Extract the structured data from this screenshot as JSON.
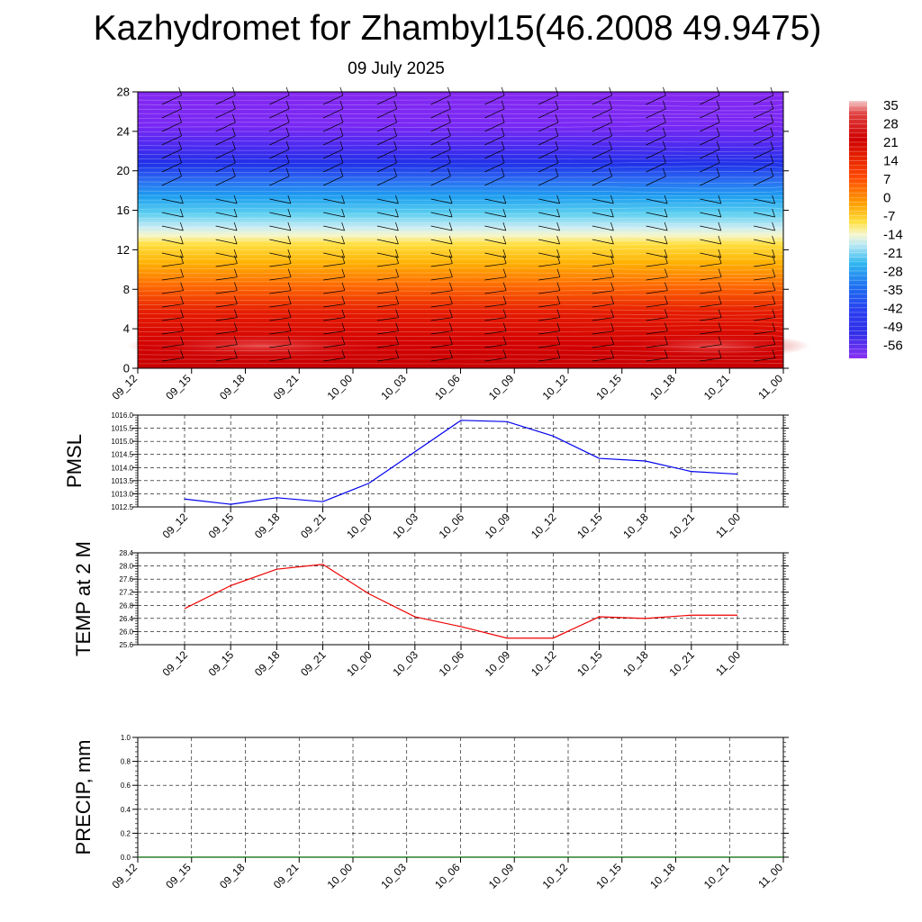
{
  "title": "Kazhydromet for Zhambyl15(46.2008 49.9475)",
  "subtitle": "09 July 2025",
  "colorbar": {
    "labels": [
      "35",
      "28",
      "21",
      "14",
      "7",
      "0",
      "-7",
      "-14",
      "-21",
      "-28",
      "-35",
      "-42",
      "-49",
      "-56"
    ]
  },
  "chart_data": [
    {
      "type": "heatmap",
      "title": "",
      "x_ticks": [
        "09_12",
        "09_15",
        "09_18",
        "09_21",
        "10_00",
        "10_03",
        "10_06",
        "10_09",
        "10_12",
        "10_15",
        "10_18",
        "10_21",
        "11_00"
      ],
      "y_ticks": [
        0,
        4,
        8,
        12,
        16,
        20,
        24,
        28
      ],
      "ylim": [
        0,
        28
      ],
      "color_scale": [
        -56,
        35
      ],
      "wind_barbs": true
    },
    {
      "type": "line",
      "ylabel": "PMSL",
      "x": [
        "09_12",
        "09_15",
        "09_18",
        "09_21",
        "10_00",
        "10_03",
        "10_06",
        "10_09",
        "10_12",
        "10_15",
        "10_18",
        "10_21",
        "11_00"
      ],
      "values": [
        1012.8,
        1012.6,
        1012.85,
        1012.7,
        1013.4,
        1014.6,
        1015.8,
        1015.75,
        1015.2,
        1014.35,
        1014.25,
        1013.85,
        1013.75
      ],
      "ylim": [
        1012.5,
        1016.0
      ],
      "y_ticks": [
        "1012.5",
        "1013.0",
        "1013.5",
        "1014.0",
        "1014.5",
        "1015.0",
        "1015.5",
        "1016.0"
      ],
      "color": "#0000ee",
      "grid": true
    },
    {
      "type": "line",
      "ylabel": "TEMP at 2 M",
      "x": [
        "09_12",
        "09_15",
        "09_18",
        "09_21",
        "10_00",
        "10_03",
        "10_06",
        "10_09",
        "10_12",
        "10_15",
        "10_18",
        "10_21",
        "11_00"
      ],
      "values": [
        26.7,
        27.4,
        27.9,
        28.05,
        27.15,
        26.45,
        26.15,
        25.8,
        25.8,
        26.45,
        26.4,
        26.5,
        26.5
      ],
      "ylim": [
        25.6,
        28.4
      ],
      "y_ticks": [
        "25.6",
        "26.0",
        "26.4",
        "26.8",
        "27.2",
        "27.6",
        "28.0",
        "28.4"
      ],
      "color": "#ee0000",
      "grid": true
    },
    {
      "type": "line",
      "ylabel": "PRECIP, mm",
      "x": [
        "09_12",
        "09_15",
        "09_18",
        "09_21",
        "10_00",
        "10_03",
        "10_06",
        "10_09",
        "10_12",
        "10_15",
        "10_18",
        "10_21",
        "11_00"
      ],
      "values": [
        0,
        0,
        0,
        0,
        0,
        0,
        0,
        0,
        0,
        0,
        0,
        0,
        0
      ],
      "ylim": [
        0,
        1.0
      ],
      "y_ticks": [
        "0.0",
        "0.2",
        "0.4",
        "0.6",
        "0.8",
        "1.0"
      ],
      "color": "#006400",
      "grid": true
    }
  ]
}
